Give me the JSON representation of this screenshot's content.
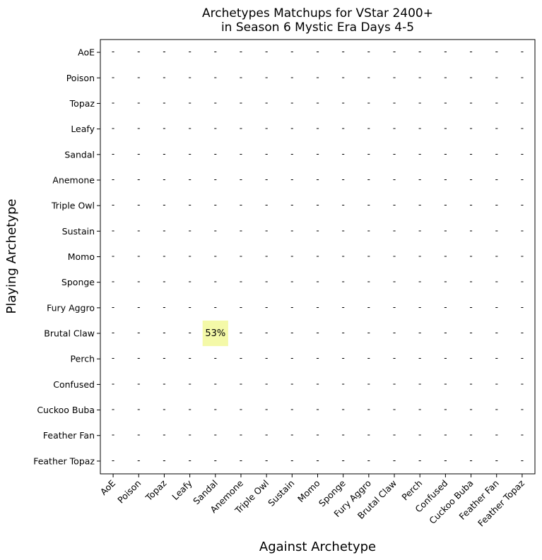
{
  "chart_data": {
    "type": "heatmap",
    "title": "Archetypes Matchups for VStar 2400+\nin Season 6 Mystic Era Days 4-5",
    "xlabel": "Against Archetype",
    "ylabel": "Playing Archetype",
    "rows": [
      "AoE",
      "Poison",
      "Topaz",
      "Leafy",
      "Sandal",
      "Anemone",
      "Triple Owl",
      "Sustain",
      "Momo",
      "Sponge",
      "Fury Aggro",
      "Brutal Claw",
      "Perch",
      "Confused",
      "Cuckoo Buba",
      "Feather Fan",
      "Feather Topaz"
    ],
    "columns": [
      "AoE",
      "Poison",
      "Topaz",
      "Leafy",
      "Sandal",
      "Anemone",
      "Triple Owl",
      "Sustain",
      "Momo",
      "Sponge",
      "Fury Aggro",
      "Brutal Claw",
      "Perch",
      "Confused",
      "Cuckoo Buba",
      "Feather Fan",
      "Feather Topaz"
    ],
    "empty_cell_text": "-",
    "cells": [
      {
        "row": "Brutal Claw",
        "column": "Sandal",
        "value": 53,
        "label": "53%",
        "color": "#f4f9a8"
      }
    ],
    "grid": false,
    "legend": "none"
  }
}
